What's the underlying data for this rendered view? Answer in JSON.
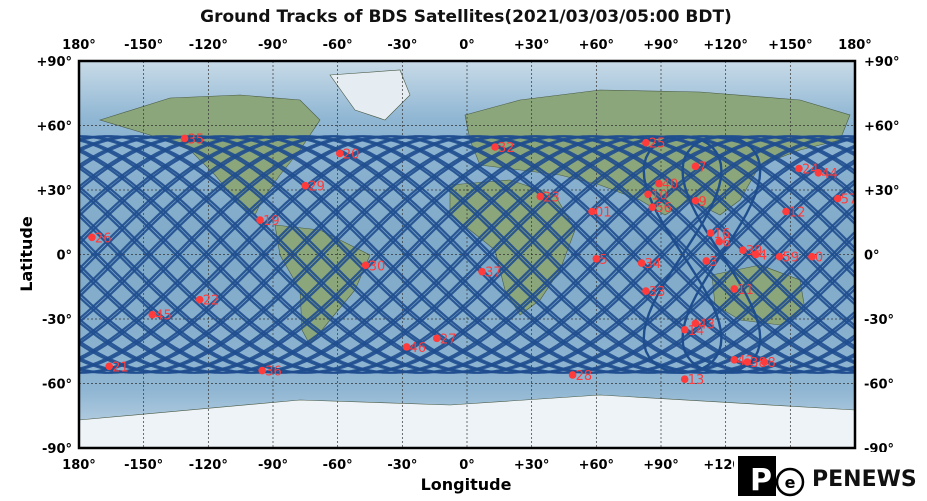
{
  "title": "Ground Tracks of BDS Satellites(2021/03/03/05:00 BDT)",
  "x_label": "Longitude",
  "y_label": "Latitude",
  "x_ticks": [
    "180°",
    "-150°",
    "-120°",
    "-90°",
    "-60°",
    "-30°",
    "0°",
    "+30°",
    "+60°",
    "+90°",
    "+120°",
    "+150°",
    "180°"
  ],
  "y_ticks": [
    "+90°",
    "+60°",
    "+30°",
    "0°",
    "-30°",
    "-60°",
    "-90°"
  ],
  "colors": {
    "track": "#1f4e8f",
    "satellite": "#ff3b3b",
    "ocean": "#8fb6d3",
    "land": "#8aa67a",
    "ice": "#eef3f7"
  },
  "logo": {
    "text": "PENEWS",
    "mark_letter": "P",
    "mark_sub": "e"
  },
  "chart_data": {
    "type": "scatter",
    "xlim": [
      -180,
      180
    ],
    "ylim": [
      -90,
      90
    ],
    "grid": true,
    "satellites": [
      {
        "id": "35",
        "lon": -131,
        "lat": 54
      },
      {
        "id": "20",
        "lon": -59,
        "lat": 47
      },
      {
        "id": "29",
        "lon": -75,
        "lat": 32
      },
      {
        "id": "19",
        "lon": -96,
        "lat": 16
      },
      {
        "id": "26",
        "lon": -174,
        "lat": 8
      },
      {
        "id": "30",
        "lon": -47,
        "lat": -5
      },
      {
        "id": "22",
        "lon": -124,
        "lat": -21
      },
      {
        "id": "45",
        "lon": -146,
        "lat": -28
      },
      {
        "id": "21",
        "lon": -166,
        "lat": -52
      },
      {
        "id": "36",
        "lon": -95,
        "lat": -54
      },
      {
        "id": "46",
        "lon": -28,
        "lat": -43
      },
      {
        "id": "27",
        "lon": -14,
        "lat": -39
      },
      {
        "id": "37",
        "lon": 7,
        "lat": -8
      },
      {
        "id": "32",
        "lon": 13,
        "lat": 50
      },
      {
        "id": "23",
        "lon": 34,
        "lat": 27
      },
      {
        "id": "01",
        "lon": 58,
        "lat": 20
      },
      {
        "id": "5",
        "lon": 60,
        "lat": -2
      },
      {
        "id": "28",
        "lon": 49,
        "lat": -56
      },
      {
        "id": "25",
        "lon": 83,
        "lat": 52
      },
      {
        "id": "40",
        "lon": 89,
        "lat": 33
      },
      {
        "id": "10",
        "lon": 84,
        "lat": 28
      },
      {
        "id": "56",
        "lon": 86,
        "lat": 22
      },
      {
        "id": "34",
        "lon": 81,
        "lat": -4
      },
      {
        "id": "33",
        "lon": 83,
        "lat": -17
      },
      {
        "id": "7",
        "lon": 106,
        "lat": 41
      },
      {
        "id": "9",
        "lon": 106,
        "lat": 25
      },
      {
        "id": "3",
        "lon": 111,
        "lat": -3
      },
      {
        "id": "11",
        "lon": 124,
        "lat": -16
      },
      {
        "id": "43",
        "lon": 106,
        "lat": -32
      },
      {
        "id": "14",
        "lon": 101,
        "lat": -35
      },
      {
        "id": "13",
        "lon": 101,
        "lat": -58
      },
      {
        "id": "42",
        "lon": 124,
        "lat": -49
      },
      {
        "id": "38",
        "lon": 130,
        "lat": -50
      },
      {
        "id": "8",
        "lon": 138,
        "lat": -50
      },
      {
        "id": "16",
        "lon": 113,
        "lat": 10
      },
      {
        "id": "6",
        "lon": 117,
        "lat": 6
      },
      {
        "id": "39",
        "lon": 128,
        "lat": 2
      },
      {
        "id": "4",
        "lon": 134,
        "lat": 0
      },
      {
        "id": "59",
        "lon": 145,
        "lat": -1
      },
      {
        "id": "0",
        "lon": 160,
        "lat": -1
      },
      {
        "id": "12",
        "lon": 148,
        "lat": 20
      },
      {
        "id": "24",
        "lon": 154,
        "lat": 40
      },
      {
        "id": "44",
        "lon": 163,
        "lat": 38
      },
      {
        "id": "57",
        "lon": 172,
        "lat": 26
      }
    ]
  }
}
